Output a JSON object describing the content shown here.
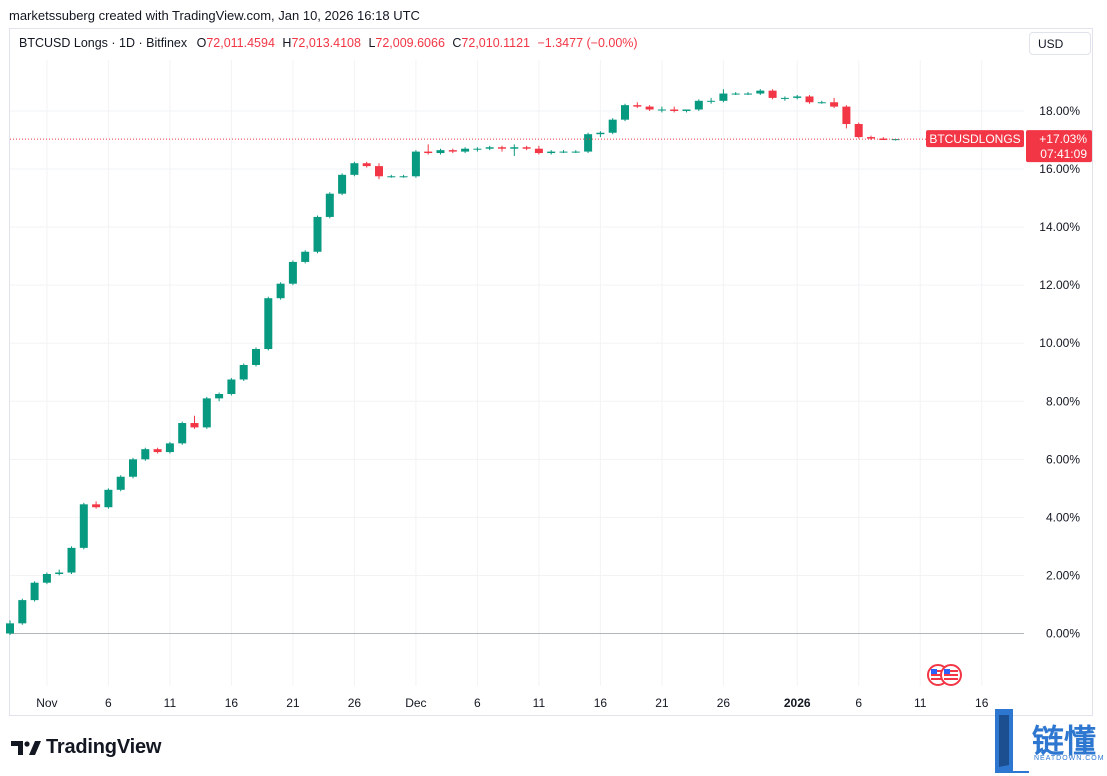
{
  "header": {
    "creator_line": "marketssuberg created with TradingView.com, Jan 10, 2026 16:18 UTC",
    "symbol_line": "BTCUSD Longs · 1D · Bitfinex",
    "open_label": "O",
    "open_value": "72,011.4594",
    "high_label": "H",
    "high_value": "72,013.4108",
    "low_label": "L",
    "low_value": "72,009.6066",
    "close_label": "C",
    "close_value": "72,010.1121",
    "change_value": "−1.3477 (−0.00%)",
    "currency": "USD"
  },
  "price_label": {
    "symbol": "BTCUSDLONGS",
    "value": "+17.03%",
    "timer": "07:41:09"
  },
  "branding": {
    "logo_text": "TradingView",
    "watermark_text": "链懂",
    "watermark_sub": "NEATDOWN.COM"
  },
  "colors": {
    "up": "#089981",
    "down": "#f23645",
    "grid": "#f2f3f5",
    "axis_text": "#131722",
    "zero_line": "#b2b5be"
  },
  "chart_data": {
    "type": "candlestick",
    "title": "BTCUSD Longs · 1D · Bitfinex",
    "ylim": [
      -1.2,
      19.6
    ],
    "y_ticks": [
      "0.00%",
      "2.00%",
      "4.00%",
      "6.00%",
      "8.00%",
      "10.00%",
      "12.00%",
      "14.00%",
      "16.00%",
      "18.00%"
    ],
    "y_tick_values": [
      0,
      2,
      4,
      6,
      8,
      10,
      12,
      14,
      16,
      18
    ],
    "x_ticks": [
      {
        "label": "Nov",
        "i": 3,
        "bold": false
      },
      {
        "label": "6",
        "i": 8,
        "bold": false
      },
      {
        "label": "11",
        "i": 13,
        "bold": false
      },
      {
        "label": "16",
        "i": 18,
        "bold": false
      },
      {
        "label": "21",
        "i": 23,
        "bold": false
      },
      {
        "label": "26",
        "i": 28,
        "bold": false
      },
      {
        "label": "Dec",
        "i": 33,
        "bold": false
      },
      {
        "label": "6",
        "i": 38,
        "bold": false
      },
      {
        "label": "11",
        "i": 43,
        "bold": false
      },
      {
        "label": "16",
        "i": 48,
        "bold": false
      },
      {
        "label": "21",
        "i": 53,
        "bold": false
      },
      {
        "label": "26",
        "i": 58,
        "bold": false
      },
      {
        "label": "2026",
        "i": 64,
        "bold": true
      },
      {
        "label": "6",
        "i": 69,
        "bold": false
      },
      {
        "label": "11",
        "i": 74,
        "bold": false
      },
      {
        "label": "16",
        "i": 79,
        "bold": false
      }
    ],
    "last_value": 17.03,
    "candles": [
      [
        0.0,
        0.45,
        -0.05,
        0.35
      ],
      [
        0.35,
        1.2,
        0.3,
        1.15
      ],
      [
        1.15,
        1.8,
        1.1,
        1.75
      ],
      [
        1.75,
        2.1,
        1.7,
        2.05
      ],
      [
        2.05,
        2.2,
        2.0,
        2.1
      ],
      [
        2.1,
        3.0,
        2.05,
        2.95
      ],
      [
        2.95,
        4.5,
        2.9,
        4.45
      ],
      [
        4.45,
        4.55,
        4.3,
        4.35
      ],
      [
        4.35,
        5.0,
        4.3,
        4.95
      ],
      [
        4.95,
        5.45,
        4.9,
        5.4
      ],
      [
        5.4,
        6.05,
        5.35,
        6.0
      ],
      [
        6.0,
        6.4,
        5.95,
        6.35
      ],
      [
        6.35,
        6.4,
        6.2,
        6.25
      ],
      [
        6.25,
        6.6,
        6.2,
        6.55
      ],
      [
        6.55,
        7.3,
        6.5,
        7.25
      ],
      [
        7.25,
        7.5,
        7.05,
        7.1
      ],
      [
        7.1,
        8.15,
        7.05,
        8.1
      ],
      [
        8.1,
        8.3,
        8.0,
        8.25
      ],
      [
        8.25,
        8.8,
        8.2,
        8.75
      ],
      [
        8.75,
        9.3,
        8.7,
        9.25
      ],
      [
        9.25,
        9.85,
        9.2,
        9.8
      ],
      [
        9.8,
        11.6,
        9.75,
        11.55
      ],
      [
        11.55,
        12.1,
        11.5,
        12.05
      ],
      [
        12.05,
        12.85,
        12.0,
        12.8
      ],
      [
        12.8,
        13.2,
        12.75,
        13.15
      ],
      [
        13.15,
        14.4,
        13.1,
        14.35
      ],
      [
        14.35,
        15.2,
        14.3,
        15.15
      ],
      [
        15.15,
        15.85,
        15.1,
        15.8
      ],
      [
        15.8,
        16.25,
        15.75,
        16.2
      ],
      [
        16.2,
        16.25,
        16.05,
        16.1
      ],
      [
        16.1,
        16.2,
        15.65,
        15.75
      ],
      [
        15.75,
        15.8,
        15.7,
        15.75
      ],
      [
        15.75,
        15.8,
        15.7,
        15.75
      ],
      [
        15.75,
        16.65,
        15.7,
        16.6
      ],
      [
        16.6,
        16.85,
        16.5,
        16.55
      ],
      [
        16.55,
        16.7,
        16.5,
        16.65
      ],
      [
        16.65,
        16.7,
        16.55,
        16.6
      ],
      [
        16.6,
        16.75,
        16.55,
        16.7
      ],
      [
        16.7,
        16.75,
        16.6,
        16.7
      ],
      [
        16.7,
        16.8,
        16.65,
        16.75
      ],
      [
        16.75,
        16.8,
        16.6,
        16.7
      ],
      [
        16.7,
        16.85,
        16.45,
        16.75
      ],
      [
        16.75,
        16.8,
        16.65,
        16.7
      ],
      [
        16.7,
        16.8,
        16.5,
        16.55
      ],
      [
        16.55,
        16.65,
        16.5,
        16.6
      ],
      [
        16.6,
        16.65,
        16.55,
        16.6
      ],
      [
        16.6,
        16.65,
        16.55,
        16.6
      ],
      [
        16.6,
        17.25,
        16.55,
        17.2
      ],
      [
        17.2,
        17.3,
        17.1,
        17.25
      ],
      [
        17.25,
        17.75,
        17.2,
        17.7
      ],
      [
        17.7,
        18.25,
        17.65,
        18.2
      ],
      [
        18.2,
        18.3,
        18.1,
        18.15
      ],
      [
        18.15,
        18.2,
        18.0,
        18.05
      ],
      [
        18.05,
        18.15,
        17.95,
        18.05
      ],
      [
        18.05,
        18.15,
        17.95,
        18.0
      ],
      [
        18.0,
        18.05,
        17.95,
        18.05
      ],
      [
        18.05,
        18.4,
        18.0,
        18.35
      ],
      [
        18.35,
        18.45,
        18.25,
        18.35
      ],
      [
        18.35,
        18.75,
        18.3,
        18.6
      ],
      [
        18.6,
        18.65,
        18.55,
        18.6
      ],
      [
        18.6,
        18.65,
        18.55,
        18.6
      ],
      [
        18.6,
        18.75,
        18.55,
        18.7
      ],
      [
        18.7,
        18.75,
        18.4,
        18.45
      ],
      [
        18.45,
        18.5,
        18.35,
        18.45
      ],
      [
        18.45,
        18.55,
        18.4,
        18.5
      ],
      [
        18.5,
        18.55,
        18.25,
        18.3
      ],
      [
        18.3,
        18.35,
        18.25,
        18.3
      ],
      [
        18.3,
        18.45,
        18.1,
        18.15
      ],
      [
        18.15,
        18.2,
        17.4,
        17.55
      ],
      [
        17.55,
        17.6,
        17.05,
        17.1
      ],
      [
        17.1,
        17.15,
        17.0,
        17.05
      ],
      [
        17.05,
        17.1,
        17.0,
        17.0
      ],
      [
        17.0,
        17.05,
        16.98,
        17.03
      ]
    ]
  }
}
